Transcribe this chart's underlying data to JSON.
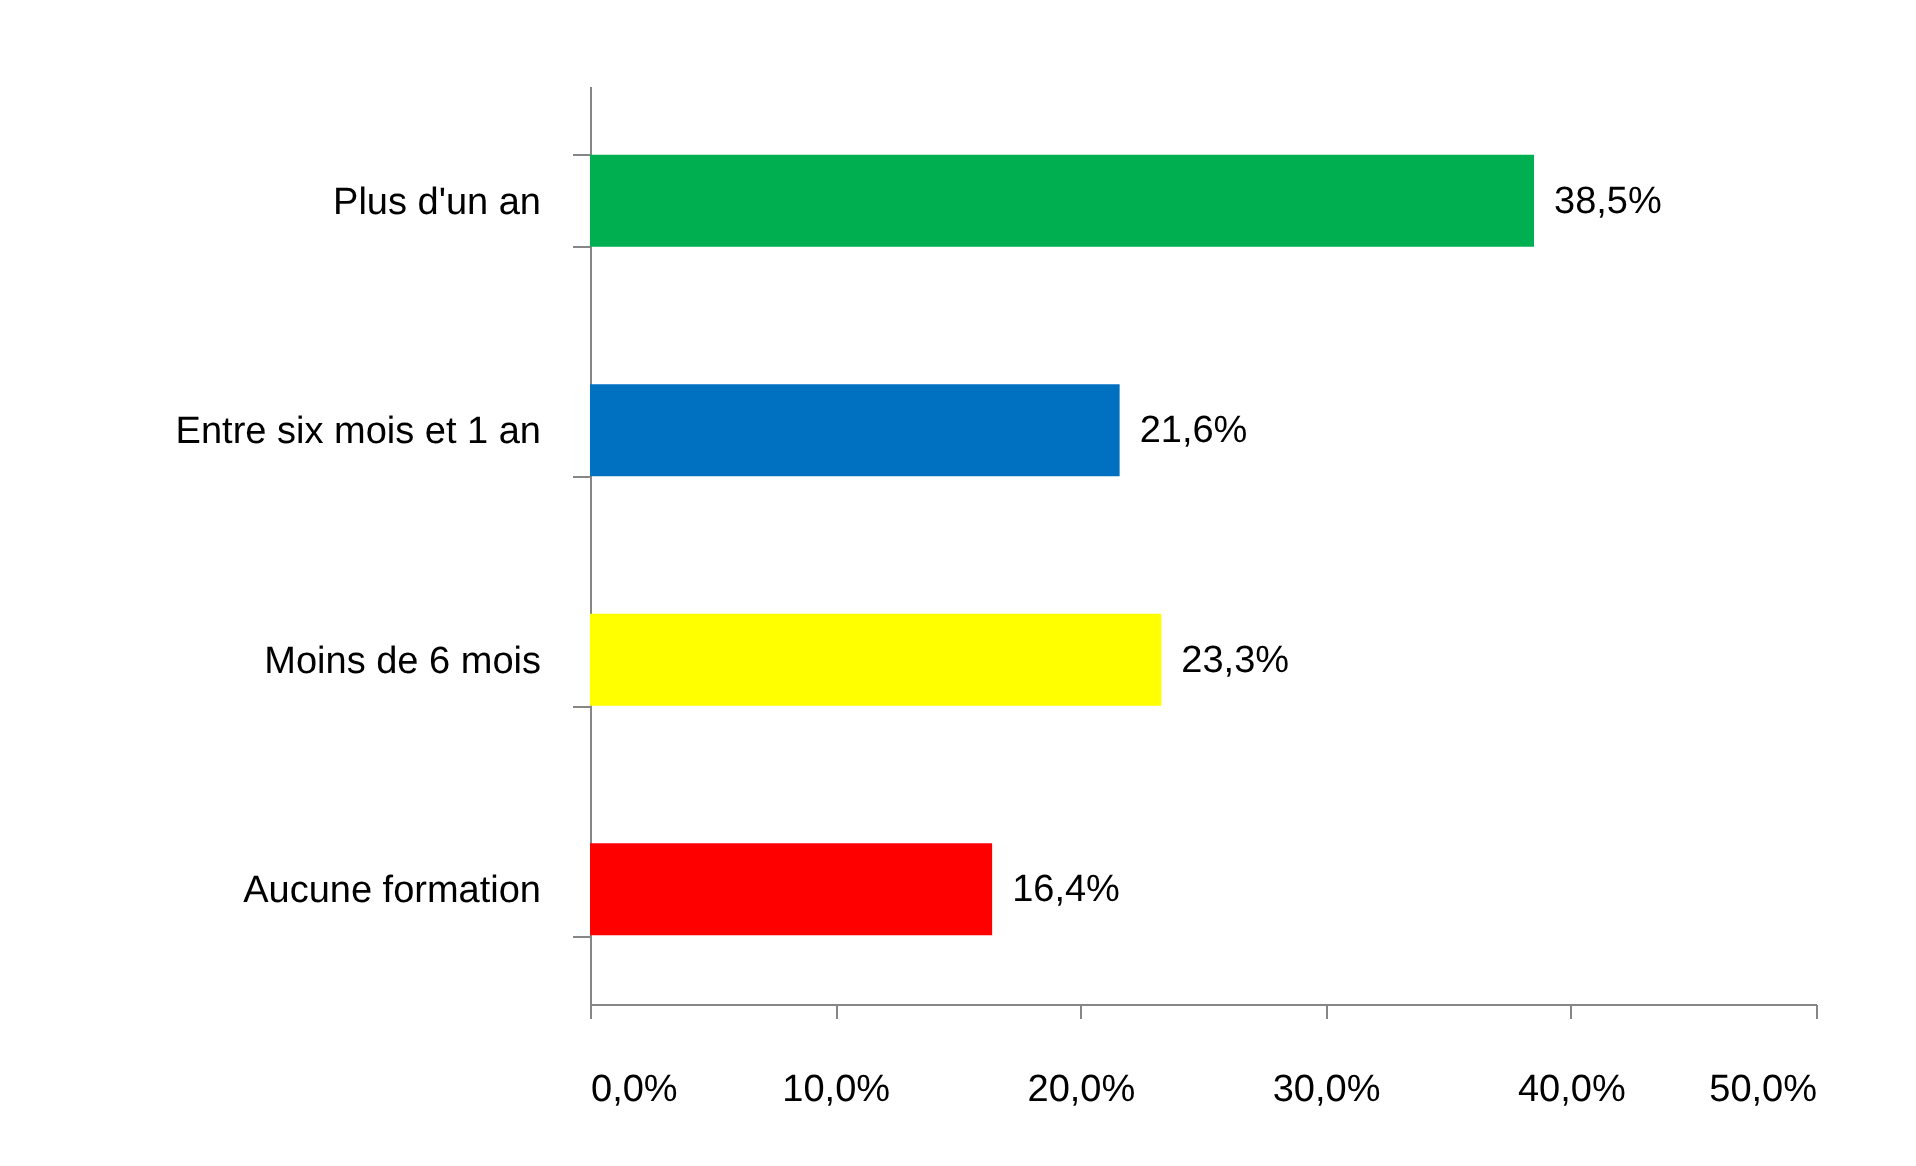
{
  "chart_data": {
    "type": "bar",
    "orientation": "horizontal",
    "categories": [
      "Plus d'un an",
      "Entre six mois et 1 an",
      "Moins de 6 mois",
      "Aucune formation"
    ],
    "values": [
      38.5,
      21.6,
      23.3,
      16.4
    ],
    "colors": [
      "#00b050",
      "#0070c0",
      "#ffff00",
      "#ff0000"
    ],
    "value_labels": [
      "38,5%",
      "21,6%",
      "23,3%",
      "16,4%"
    ],
    "xlim": [
      0,
      50
    ],
    "xticks": [
      {
        "value": 0,
        "label": "0,0%"
      },
      {
        "value": 10,
        "label": "10,0%"
      },
      {
        "value": 20,
        "label": "20,0%"
      },
      {
        "value": 30,
        "label": "30,0%"
      },
      {
        "value": 40,
        "label": "40,0%"
      },
      {
        "value": 50,
        "label": "50,0%"
      }
    ]
  }
}
